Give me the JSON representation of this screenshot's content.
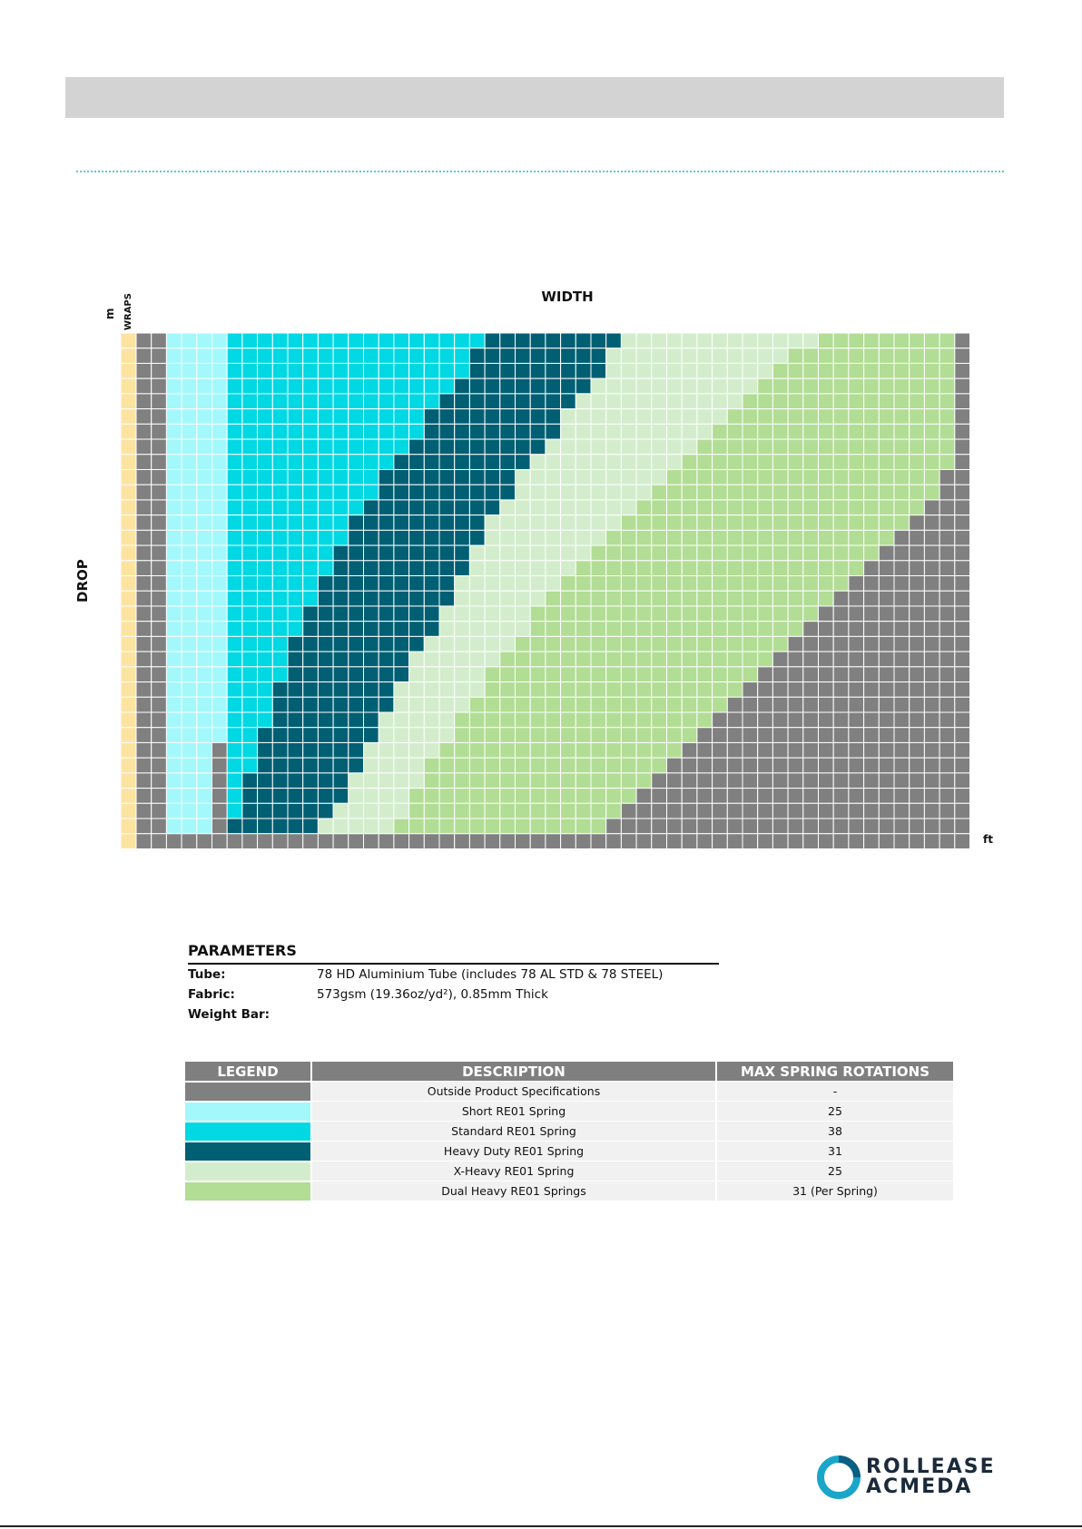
{
  "header": {
    "title": ""
  },
  "chart_data": {
    "type": "heatmap",
    "title": "",
    "xlabel": "WIDTH",
    "ylabel": "DROP",
    "x_unit": "ft",
    "y_unit": "m",
    "wraps_label": "WRAPS",
    "columns": 55,
    "rows": 33,
    "colors": {
      "gray": "#808080",
      "short": "#a3f8fc",
      "standard": "#00d8e3",
      "heavy": "#005f73",
      "xheavy": "#d3edcc",
      "dual": "#b2dd95",
      "wraps": "#fce3a0"
    },
    "region_boundaries_by_row": {
      "description_of_columns": "for each drop row (top to bottom), the last width column index (exclusive) of each spring region",
      "short_end": [
        6,
        6,
        6,
        6,
        6,
        6,
        6,
        6,
        6,
        6,
        6,
        6,
        6,
        6,
        6,
        6,
        6,
        6,
        6,
        6,
        6,
        6,
        6,
        6,
        6,
        6,
        6,
        5,
        5,
        5,
        5,
        5,
        5
      ],
      "short_start": [
        2,
        2,
        2,
        2,
        2,
        2,
        2,
        2,
        2,
        2,
        2,
        2,
        2,
        2,
        2,
        2,
        2,
        2,
        2,
        2,
        2,
        2,
        2,
        2,
        2,
        2,
        2,
        2,
        2,
        2,
        2,
        2,
        2
      ],
      "standard_end": [
        23,
        22,
        22,
        21,
        20,
        19,
        19,
        18,
        17,
        16,
        16,
        15,
        14,
        14,
        13,
        13,
        12,
        12,
        11,
        11,
        10,
        10,
        10,
        9,
        9,
        9,
        8,
        8,
        8,
        7,
        7,
        7,
        6
      ],
      "heavy_end": [
        32,
        31,
        31,
        30,
        29,
        28,
        28,
        27,
        26,
        25,
        25,
        24,
        23,
        23,
        22,
        22,
        21,
        21,
        20,
        20,
        19,
        18,
        18,
        17,
        17,
        16,
        16,
        15,
        15,
        14,
        14,
        13,
        12
      ],
      "xheavy_end": [
        45,
        43,
        42,
        41,
        40,
        39,
        38,
        37,
        36,
        35,
        34,
        33,
        32,
        31,
        30,
        29,
        28,
        27,
        26,
        26,
        25,
        24,
        23,
        23,
        22,
        21,
        21,
        20,
        19,
        19,
        18,
        18,
        17
      ],
      "dual_end": [
        54,
        54,
        54,
        54,
        54,
        54,
        54,
        54,
        54,
        53,
        53,
        52,
        51,
        50,
        49,
        48,
        47,
        46,
        45,
        44,
        43,
        42,
        41,
        40,
        39,
        38,
        37,
        36,
        35,
        34,
        33,
        32,
        31
      ]
    }
  },
  "parameters": {
    "title": "PARAMETERS",
    "rows": [
      {
        "label": "Tube:",
        "value": "78 HD Aluminium Tube (includes 78 AL STD & 78 STEEL)"
      },
      {
        "label": "Fabric:",
        "value": "573gsm (19.36oz/yd²), 0.85mm Thick"
      },
      {
        "label": "Weight Bar:",
        "value": ""
      }
    ]
  },
  "legend": {
    "headers": {
      "legend": "LEGEND",
      "description": "DESCRIPTION",
      "rotations": "MAX SPRING ROTATIONS"
    },
    "rows": [
      {
        "color": "#808080",
        "description": "Outside Product Specifications",
        "rotations": "-"
      },
      {
        "color": "#a3f8fc",
        "description": "Short RE01 Spring",
        "rotations": "25"
      },
      {
        "color": "#00d8e3",
        "description": "Standard RE01 Spring",
        "rotations": "38"
      },
      {
        "color": "#005f73",
        "description": "Heavy Duty RE01 Spring",
        "rotations": "31"
      },
      {
        "color": "#d3edcc",
        "description": "X-Heavy RE01 Spring",
        "rotations": "25"
      },
      {
        "color": "#b2dd95",
        "description": "Dual Heavy RE01 Springs",
        "rotations": "31 (Per Spring)"
      }
    ]
  },
  "brand": {
    "line1": "ROLLEASE",
    "line2": "ACMEDA",
    "logo_icon": "rollease-acmeda-logo-icon"
  }
}
